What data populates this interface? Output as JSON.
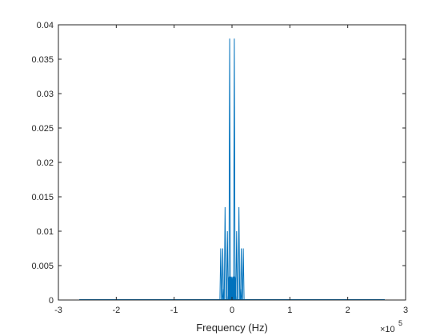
{
  "chart_data": {
    "type": "line",
    "title": "",
    "xlabel": "Frequency (Hz)",
    "ylabel": "",
    "xlim": [
      -3,
      3
    ],
    "ylim": [
      0,
      0.04
    ],
    "x_exponent_label": "×10",
    "x_exponent_power": "5",
    "xticks": [
      -3,
      -2,
      -1,
      0,
      1,
      2,
      3
    ],
    "xtick_labels": [
      "-3",
      "-2",
      "-1",
      "0",
      "1",
      "2",
      "3"
    ],
    "yticks": [
      0,
      0.005,
      0.01,
      0.015,
      0.02,
      0.025,
      0.03,
      0.035,
      0.04
    ],
    "ytick_labels": [
      "0",
      "0.005",
      "0.01",
      "0.015",
      "0.02",
      "0.025",
      "0.03",
      "0.035",
      "0.04"
    ],
    "grid": false,
    "legend": "none",
    "line_color": "#0072BD",
    "signal_range": [
      -2.64,
      2.64
    ],
    "series": [
      {
        "spikes": [
          {
            "x": -0.04,
            "y": 0.038
          },
          {
            "x": 0.04,
            "y": 0.038
          },
          {
            "x": -0.12,
            "y": 0.0135
          },
          {
            "x": 0.12,
            "y": 0.0135
          },
          {
            "x": -0.08,
            "y": 0.01
          },
          {
            "x": 0.08,
            "y": 0.01
          },
          {
            "x": -0.16,
            "y": 0.0075
          },
          {
            "x": 0.16,
            "y": 0.0075
          },
          {
            "x": -0.195,
            "y": 0.0075
          },
          {
            "x": 0.195,
            "y": 0.0075
          },
          {
            "x": -0.15,
            "y": 0.0016
          },
          {
            "x": 0.15,
            "y": 0.0016
          },
          {
            "x": -0.03,
            "y": 0.0035
          },
          {
            "x": 0.03,
            "y": 0.0035
          },
          {
            "x": -0.01,
            "y": 0.003
          },
          {
            "x": 0.01,
            "y": 0.003
          },
          {
            "x": -0.06,
            "y": 0.002
          },
          {
            "x": 0.06,
            "y": 0.002
          }
        ]
      }
    ]
  }
}
